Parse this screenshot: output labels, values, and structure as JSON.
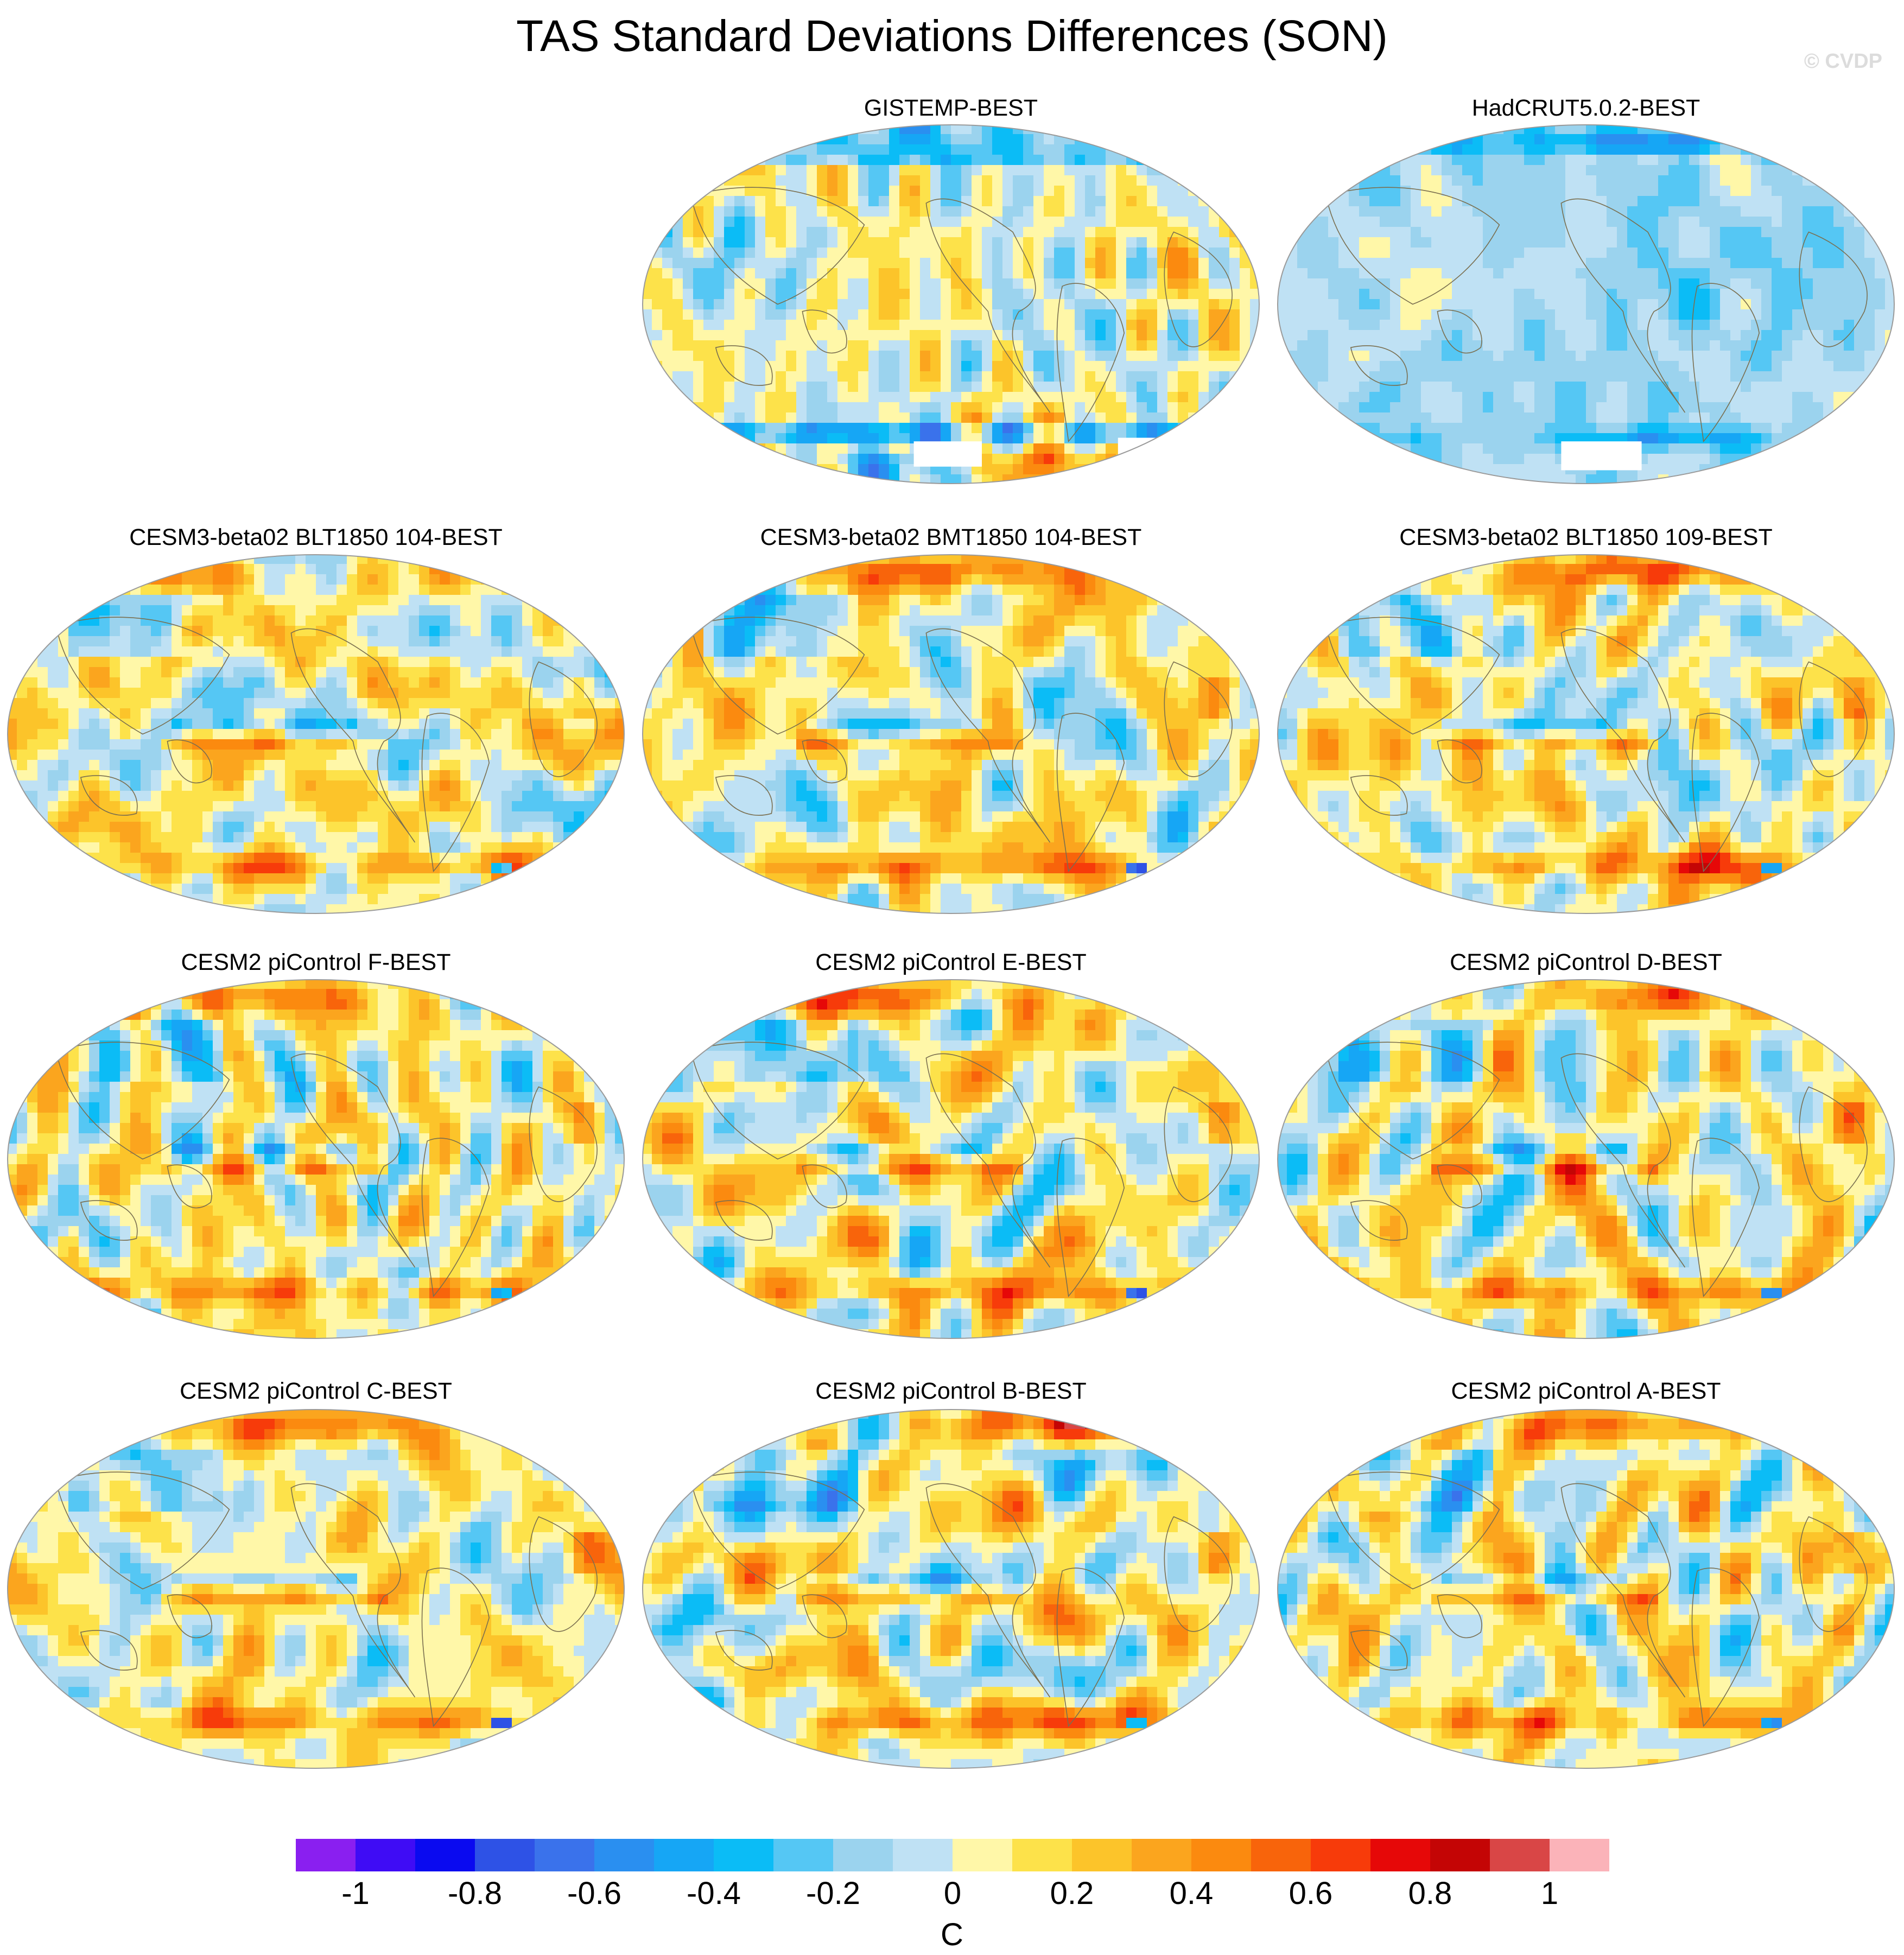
{
  "figure": {
    "title": "TAS Standard Deviations Differences (SON)",
    "watermark": "© CVDP"
  },
  "panels": [
    {
      "title": "GISTEMP-BEST",
      "row": 0,
      "col": 1,
      "mask": "gistemp",
      "pattern": "obs-mixed",
      "seed": 11
    },
    {
      "title": "HadCRUT5.0.2-BEST",
      "row": 0,
      "col": 2,
      "mask": "hadcrut",
      "pattern": "obs-cool",
      "seed": 23
    },
    {
      "title": "CESM3-beta02 BLT1850 104-BEST",
      "row": 1,
      "col": 0,
      "mask": "none",
      "pattern": "model",
      "seed": 37
    },
    {
      "title": "CESM3-beta02 BMT1850 104-BEST",
      "row": 1,
      "col": 1,
      "mask": "none",
      "pattern": "model",
      "seed": 41
    },
    {
      "title": "CESM3-beta02 BLT1850 109-BEST",
      "row": 1,
      "col": 2,
      "mask": "none",
      "pattern": "model",
      "seed": 53
    },
    {
      "title": "CESM2 piControl F-BEST",
      "row": 2,
      "col": 0,
      "mask": "none",
      "pattern": "model",
      "seed": 61
    },
    {
      "title": "CESM2 piControl E-BEST",
      "row": 2,
      "col": 1,
      "mask": "none",
      "pattern": "model",
      "seed": 67
    },
    {
      "title": "CESM2 piControl D-BEST",
      "row": 2,
      "col": 2,
      "mask": "none",
      "pattern": "model",
      "seed": 71
    },
    {
      "title": "CESM2 piControl C-BEST",
      "row": 3,
      "col": 0,
      "mask": "none",
      "pattern": "model",
      "seed": 79
    },
    {
      "title": "CESM2 piControl B-BEST",
      "row": 3,
      "col": 1,
      "mask": "none",
      "pattern": "model",
      "seed": 83
    },
    {
      "title": "CESM2 piControl A-BEST",
      "row": 3,
      "col": 2,
      "mask": "none",
      "pattern": "model",
      "seed": 97
    }
  ],
  "colorbar": {
    "unit": "C",
    "ticks": [
      "-1",
      "-0.8",
      "-0.6",
      "-0.4",
      "-0.2",
      "0",
      "0.2",
      "0.4",
      "0.6",
      "0.8",
      "1"
    ],
    "levels": [
      -1.1,
      -1.0,
      -0.9,
      -0.8,
      -0.7,
      -0.6,
      -0.5,
      -0.4,
      -0.3,
      -0.2,
      -0.1,
      0,
      0.1,
      0.2,
      0.3,
      0.4,
      0.5,
      0.6,
      0.7,
      0.8,
      0.9,
      1.0,
      1.1
    ],
    "colors": [
      "#8a1ff0",
      "#3f0cf5",
      "#0a0af0",
      "#2e52e6",
      "#3a72eb",
      "#2a8ff0",
      "#16a6f5",
      "#0bbcf6",
      "#55c7f4",
      "#9bd3ee",
      "#bfe1f4",
      "#fff7a8",
      "#fde24a",
      "#fcc42a",
      "#fba51e",
      "#fb8a0f",
      "#f8640b",
      "#f73b0a",
      "#e60808",
      "#c40505",
      "#d94646",
      "#fbb3b9"
    ]
  },
  "map_style": {
    "ocean_outline": "#9a9a9a",
    "coast": "#7a6f50",
    "missing": "#ffffff"
  }
}
